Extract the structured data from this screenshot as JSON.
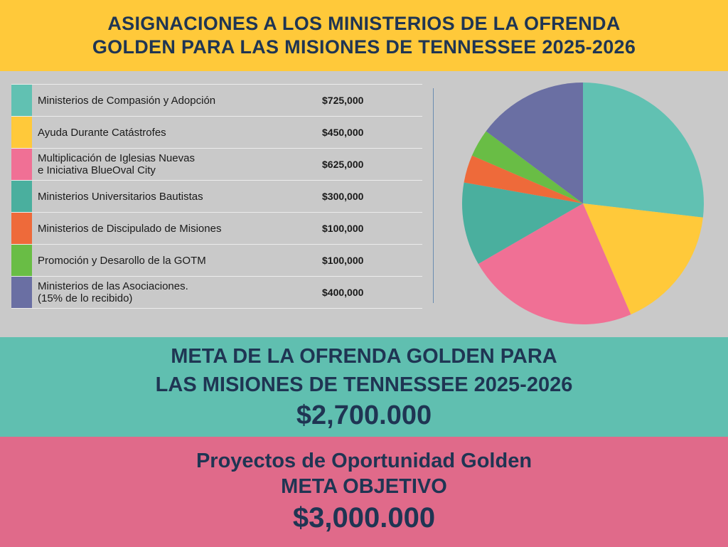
{
  "header": {
    "line1": "ASIGNACIONES  A LOS MINISTERIOS DE LA OFRENDA",
    "line2": "GOLDEN PARA LAS MISIONES DE TENNESSEE 2025-2026"
  },
  "chart_data": {
    "type": "pie",
    "title": "",
    "slices": [
      {
        "label": "Ministerios de Compasión y Adopción",
        "label_line2": "",
        "value": 725000,
        "value_text": "$725,000",
        "color": "#61c1b2"
      },
      {
        "label": "Ayuda Durante Catástrofes",
        "label_line2": "",
        "value": 450000,
        "value_text": "$450,000",
        "color": "#ffc93a"
      },
      {
        "label": "Multiplicación de Iglesias Nuevas",
        "label_line2": "e Iniciativa BlueOval City",
        "value": 625000,
        "value_text": "$625,000",
        "color": "#f07095"
      },
      {
        "label": "Ministerios Universitarios Bautistas",
        "label_line2": "",
        "value": 300000,
        "value_text": "$300,000",
        "color": "#4aaf9e"
      },
      {
        "label": "Ministerios de Discipulado de Misiones",
        "label_line2": "",
        "value": 100000,
        "value_text": "$100,000",
        "color": "#ee6a3a"
      },
      {
        "label": "Promoción y Desarollo de la GOTM",
        "label_line2": "",
        "value": 100000,
        "value_text": "$100,000",
        "color": "#69bd45"
      },
      {
        "label": "Ministerios de las Asociaciones.",
        "label_line2": "(15% de lo recibido)",
        "value": 400000,
        "value_text": "$400,000",
        "color": "#6a6fa3"
      }
    ],
    "legend": "left",
    "start_angle_deg": 0,
    "direction": "clockwise"
  },
  "goal": {
    "line1": "META DE LA OFRENDA GOLDEN PARA",
    "line2": "LAS MISIONES DE TENNESSEE 2025-2026",
    "amount": "$2,700.000"
  },
  "projects": {
    "line1": "Proyectos de Oportunidad Golden",
    "line2": "META OBJETIVO",
    "amount": "$3,000.000"
  }
}
